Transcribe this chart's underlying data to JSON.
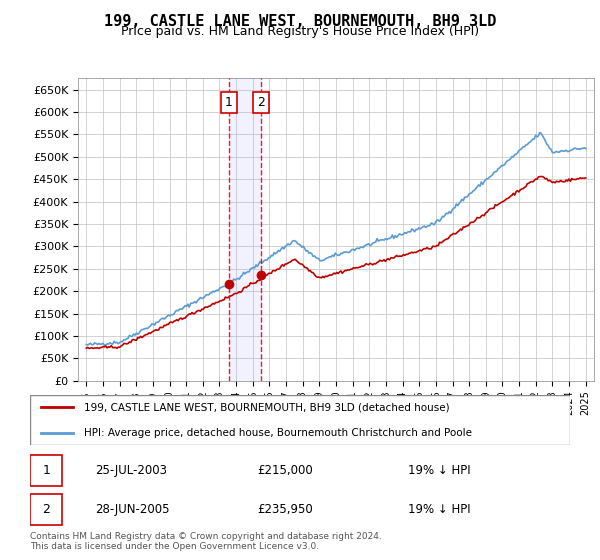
{
  "title": "199, CASTLE LANE WEST, BOURNEMOUTH, BH9 3LD",
  "subtitle": "Price paid vs. HM Land Registry's House Price Index (HPI)",
  "legend_line1": "199, CASTLE LANE WEST, BOURNEMOUTH, BH9 3LD (detached house)",
  "legend_line2": "HPI: Average price, detached house, Bournemouth Christchurch and Poole",
  "footer": "Contains HM Land Registry data © Crown copyright and database right 2024.\nThis data is licensed under the Open Government Licence v3.0.",
  "transaction1_date": "25-JUL-2003",
  "transaction1_price": 215000,
  "transaction1_label": "19% ↓ HPI",
  "transaction2_date": "28-JUN-2005",
  "transaction2_price": 235950,
  "transaction2_label": "19% ↓ HPI",
  "hpi_color": "#5b9bd5",
  "price_color": "#c00000",
  "vline_color": "#ff0000",
  "dot_color": "#c00000",
  "background_color": "#ffffff",
  "grid_color": "#c0c0c0",
  "ylim": [
    0,
    675000
  ],
  "yticks": [
    0,
    50000,
    100000,
    150000,
    200000,
    250000,
    300000,
    350000,
    400000,
    450000,
    500000,
    550000,
    600000,
    650000
  ],
  "xlim_start": 1994.5,
  "xlim_end": 2025.5
}
